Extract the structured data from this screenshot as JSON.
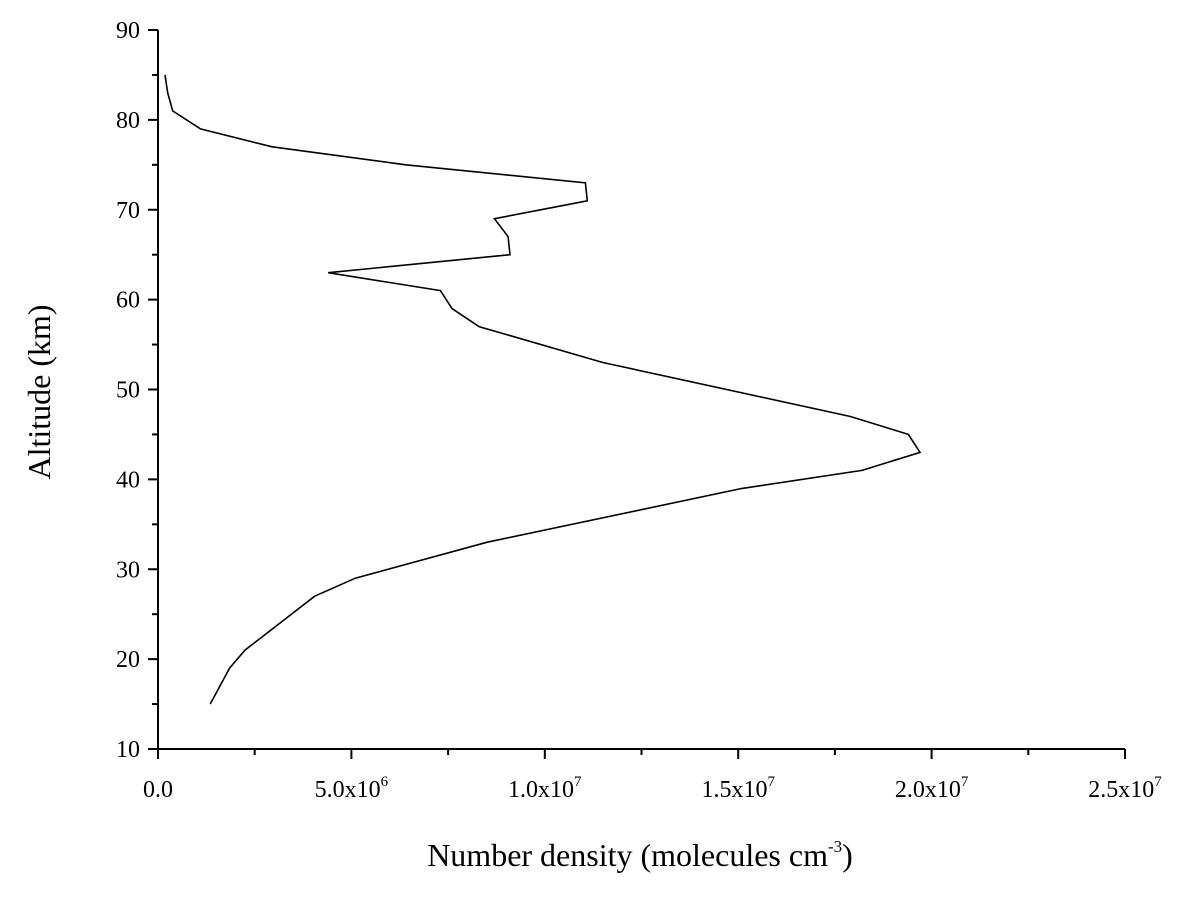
{
  "chart_data": {
    "type": "line",
    "title": "",
    "xlabel_main": "Number density (molecules cm",
    "xlabel_sup": "-3",
    "xlabel_close": ")",
    "ylabel": "Altitude (km)",
    "xlim": [
      0,
      25000000
    ],
    "ylim": [
      10,
      90
    ],
    "x_ticks": [
      {
        "value": 0,
        "mant": "0.0",
        "exp": ""
      },
      {
        "value": 5000000,
        "mant": "5.0x10",
        "exp": "6"
      },
      {
        "value": 10000000,
        "mant": "1.0x10",
        "exp": "7"
      },
      {
        "value": 15000000,
        "mant": "1.5x10",
        "exp": "7"
      },
      {
        "value": 20000000,
        "mant": "2.0x10",
        "exp": "7"
      },
      {
        "value": 25000000,
        "mant": "2.5x10",
        "exp": "7"
      }
    ],
    "y_ticks": [
      {
        "value": 10,
        "label": "10"
      },
      {
        "value": 20,
        "label": "20"
      },
      {
        "value": 30,
        "label": "30"
      },
      {
        "value": 40,
        "label": "40"
      },
      {
        "value": 50,
        "label": "50"
      },
      {
        "value": 60,
        "label": "60"
      },
      {
        "value": 70,
        "label": "70"
      },
      {
        "value": 80,
        "label": "80"
      },
      {
        "value": 90,
        "label": "90"
      }
    ],
    "series": [
      {
        "color": "#000000",
        "points": [
          [
            1350000,
            15
          ],
          [
            1850000,
            19
          ],
          [
            2250000,
            21
          ],
          [
            4050000,
            27
          ],
          [
            5100000,
            29
          ],
          [
            8500000,
            33
          ],
          [
            15100000,
            39
          ],
          [
            18200000,
            41
          ],
          [
            19700000,
            43
          ],
          [
            19400000,
            45
          ],
          [
            17900000,
            47
          ],
          [
            11500000,
            53
          ],
          [
            8300000,
            57
          ],
          [
            7600000,
            59
          ],
          [
            7300000,
            61
          ],
          [
            4400000,
            63
          ],
          [
            9100000,
            65
          ],
          [
            9050000,
            67
          ],
          [
            8700000,
            69
          ],
          [
            11100000,
            71
          ],
          [
            11050000,
            73
          ],
          [
            6400000,
            75
          ],
          [
            2950000,
            77
          ],
          [
            1100000,
            79
          ],
          [
            380000,
            81
          ],
          [
            250000,
            83
          ],
          [
            180000,
            85
          ]
        ]
      }
    ]
  }
}
